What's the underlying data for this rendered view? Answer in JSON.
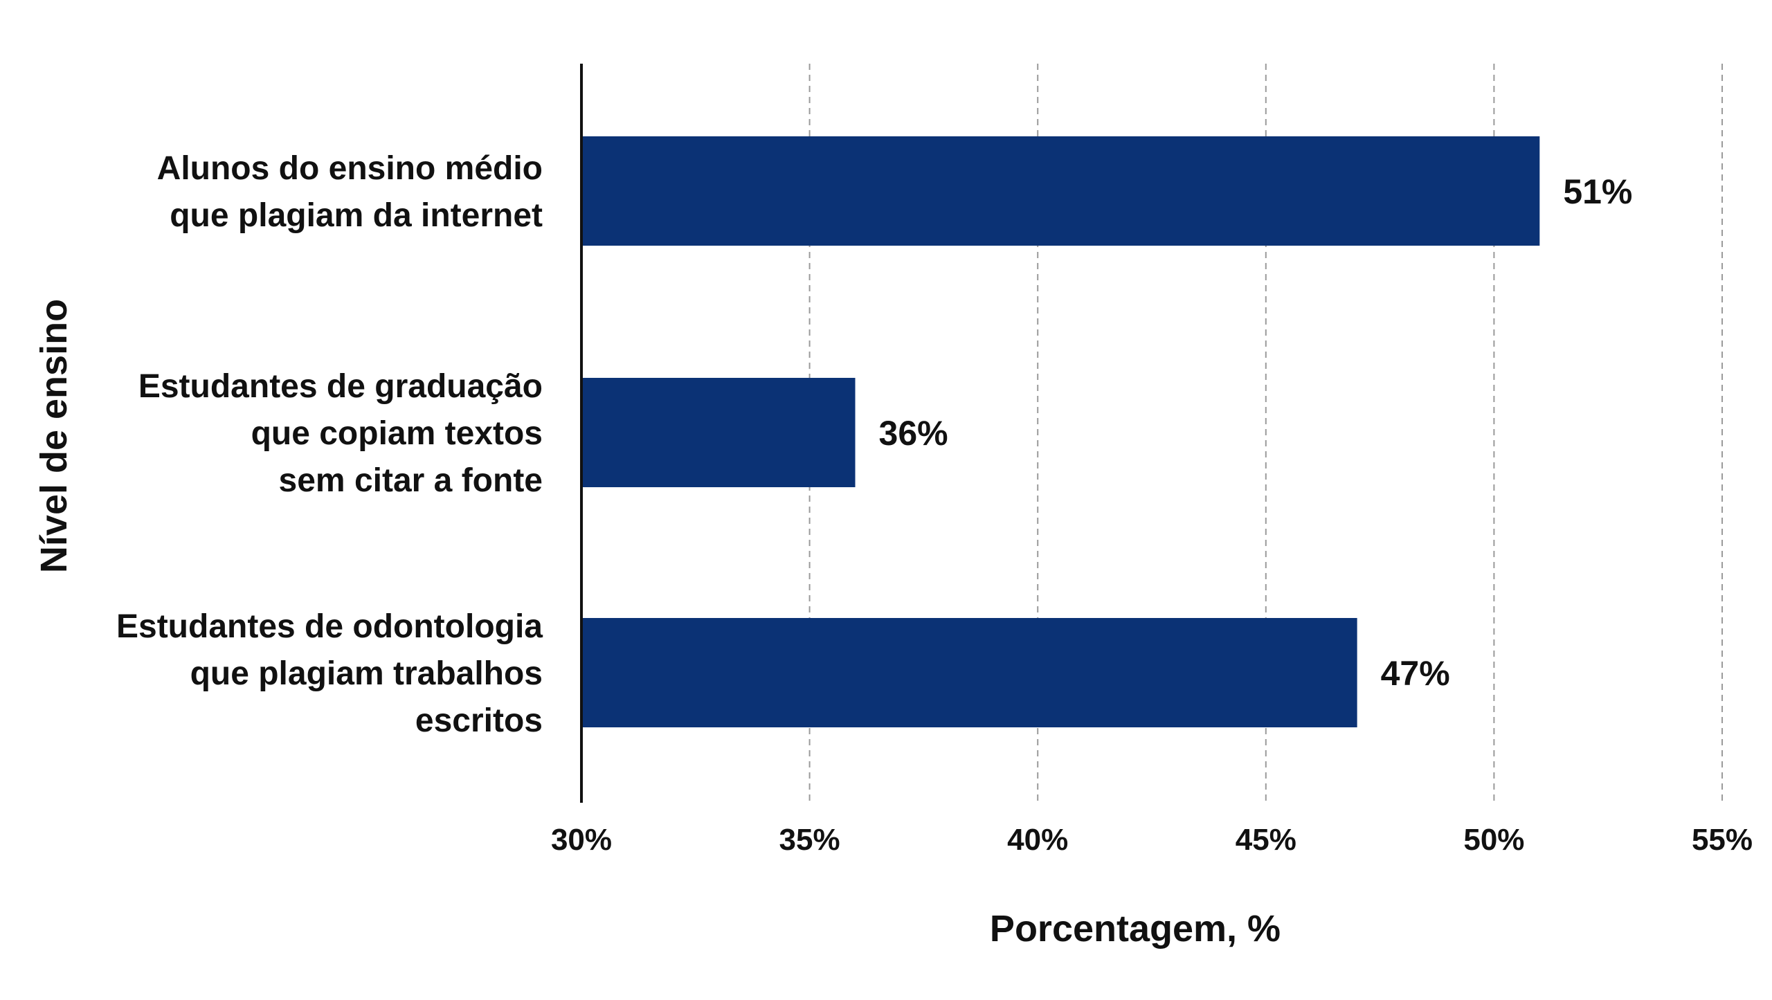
{
  "chart_data": {
    "type": "bar",
    "orientation": "horizontal",
    "categories": [
      [
        "Alunos do ensino médio",
        "que plagiam da internet"
      ],
      [
        "Estudantes de graduação",
        "que copiam textos",
        "sem citar a fonte"
      ],
      [
        "Estudantes de odontologia",
        "que plagiam trabalhos",
        "escritos"
      ]
    ],
    "values": [
      51,
      36,
      47
    ],
    "value_labels": [
      "51%",
      "36%",
      "47%"
    ],
    "xlabel": "Porcentagem, %",
    "ylabel": "Nível de ensino",
    "xlim": [
      30,
      55
    ],
    "xticks": [
      30,
      35,
      40,
      45,
      50,
      55
    ],
    "xtick_labels": [
      "30%",
      "35%",
      "40%",
      "45%",
      "50%",
      "55%"
    ],
    "grid": "vertical dashed",
    "bar_color": "#0b3275",
    "grid_color": "#9a9a9a",
    "axis_color": "#111111"
  }
}
